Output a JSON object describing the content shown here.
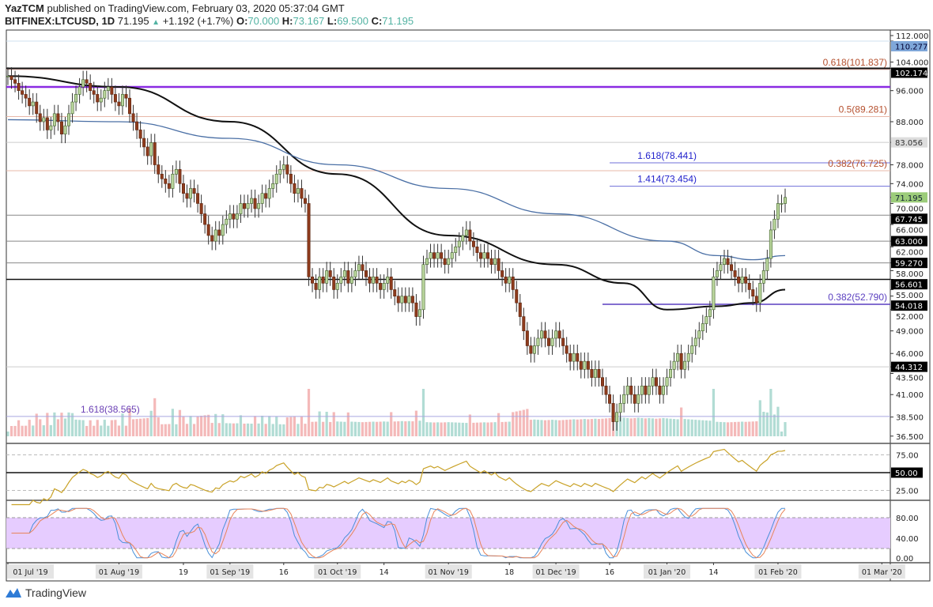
{
  "header": {
    "author": "YazTCM",
    "published": "published on TradingView.com, February 03, 2020 05:37:04 GMT",
    "symbol": "BITFINEX:LTCUSD, 1D",
    "last": "71.195",
    "change": "+1.192 (+1.7%)",
    "o_label": "O:",
    "o": "70.000",
    "h_label": "H:",
    "h": "73.167",
    "l_label": "L:",
    "l": "69.500",
    "c_label": "C:",
    "c": "71.195"
  },
  "footer": {
    "brand": "TradingView"
  },
  "colors": {
    "up_fill": "#b9d59c",
    "up_line": "#3f5f2a",
    "down_fill": "#8e3b1c",
    "down_line": "#5a2410",
    "ma_fast": "#111111",
    "ma_slow": "#4a6fa5",
    "rsi": "#c9a227",
    "stoch_k": "#4a90d9",
    "stoch_d": "#e8845a",
    "stoch_band": "#e6ccff"
  },
  "chart_data": {
    "type": "candlestick",
    "start_date": "2019-07-01",
    "interval": "1D",
    "price_scale": "log",
    "ylim": [
      36.5,
      112
    ],
    "closes": [
      100,
      99,
      98,
      96,
      95,
      94,
      92,
      93,
      90,
      88,
      89,
      86,
      87,
      90,
      88,
      85,
      87,
      90,
      93,
      95,
      97,
      99,
      98,
      96,
      95,
      93,
      94,
      96,
      97,
      95,
      93,
      92,
      95,
      94,
      90,
      88,
      86,
      84,
      82,
      80,
      83,
      78,
      76,
      75,
      74,
      73,
      76,
      77,
      74,
      72,
      71,
      73,
      72,
      70,
      68,
      66,
      64,
      63,
      65,
      64,
      66,
      67,
      68,
      67,
      68,
      70,
      69,
      70,
      71,
      69,
      70,
      72,
      71,
      73,
      74,
      76,
      77,
      78,
      76,
      74,
      72,
      73,
      71,
      70,
      57,
      56,
      55,
      57,
      56,
      58,
      57,
      55,
      56,
      57,
      58,
      56,
      57,
      58,
      59,
      58,
      57,
      56,
      57,
      56,
      55,
      56,
      57,
      55,
      54,
      53,
      54,
      53,
      54,
      53,
      51,
      52,
      59,
      60,
      61,
      60,
      61,
      60,
      59,
      60,
      61,
      62,
      63,
      64,
      65,
      63,
      62,
      61,
      60,
      61,
      60,
      59,
      60,
      58,
      57,
      56,
      57,
      55,
      53,
      51,
      49,
      47,
      46,
      47,
      48,
      49,
      48,
      47,
      48,
      49,
      48,
      47,
      46,
      45,
      46,
      45,
      44,
      45,
      44,
      43,
      44,
      43,
      42,
      41,
      40,
      38,
      39,
      40,
      41,
      42,
      41,
      40,
      41,
      42,
      41,
      42,
      43,
      42,
      41,
      42,
      43,
      44,
      45,
      46,
      44,
      45,
      46,
      47,
      48,
      49,
      50,
      51,
      52,
      57,
      58,
      59,
      60,
      59,
      58,
      57,
      56,
      57,
      56,
      55,
      54,
      53,
      56,
      58,
      60,
      65,
      67,
      70,
      70,
      71.195
    ],
    "moving_averages": [
      {
        "color_key": "ma_fast",
        "points": [
          [
            "2019-07-01",
            100
          ],
          [
            "2019-08-01",
            97
          ],
          [
            "2019-09-01",
            88
          ],
          [
            "2019-10-01",
            76
          ],
          [
            "2019-11-01",
            64
          ],
          [
            "2019-12-01",
            59
          ],
          [
            "2019-12-20",
            56
          ],
          [
            "2020-01-01",
            52
          ],
          [
            "2020-01-15",
            52.5
          ],
          [
            "2020-01-25",
            53
          ],
          [
            "2020-02-03",
            55
          ]
        ]
      },
      {
        "color_key": "ma_slow",
        "points": [
          [
            "2019-07-01",
            88.5
          ],
          [
            "2019-08-01",
            88
          ],
          [
            "2019-09-01",
            84
          ],
          [
            "2019-10-01",
            78
          ],
          [
            "2019-11-01",
            73
          ],
          [
            "2019-12-01",
            68
          ],
          [
            "2020-01-01",
            63
          ],
          [
            "2020-01-15",
            60.5
          ],
          [
            "2020-01-25",
            59.8
          ],
          [
            "2020-02-03",
            60.5
          ]
        ]
      }
    ],
    "levels": [
      {
        "price": 110.277,
        "color": "#cfe0ef",
        "axis_label": "110.277",
        "axis_bg": "#7fa7d9",
        "axis_fg": "#003"
      },
      {
        "price": 102.174,
        "color": "#111",
        "width": 2,
        "axis_label": "102.174",
        "axis_bg": "#000",
        "axis_fg": "#fff"
      },
      {
        "price": 101.837,
        "color": "#f2c6bd",
        "text": "0.618(101.837)",
        "text_color": "#b5502e"
      },
      {
        "price": 97,
        "color": "#8a2be2",
        "width": 2.5
      },
      {
        "price": 89.281,
        "color": "#e8b8a8",
        "text": "0.5(89.281)",
        "text_color": "#b5502e"
      },
      {
        "price": 83.056,
        "color": "#ccc",
        "axis_label": "83.056",
        "axis_bg": "#ddd",
        "axis_fg": "#333"
      },
      {
        "price": 78.441,
        "color": "#6f6fd8",
        "from": "2019-12-16",
        "text": "1.618(78.441)",
        "text_color": "#2222cc",
        "text_at": "left"
      },
      {
        "price": 76.725,
        "color": "#e8b8a8",
        "text": "0.382(76.725)",
        "text_color": "#b5502e"
      },
      {
        "price": 73.454,
        "color": "#6f6fd8",
        "from": "2019-12-16",
        "text": "1.414(73.454)",
        "text_color": "#2222cc",
        "text_at": "left"
      },
      {
        "price": 71.195,
        "color": "none",
        "axis_label": "71.195",
        "axis_bg": "#9ccc7a",
        "axis_fg": "#123"
      },
      {
        "price": 67.745,
        "color": "#888",
        "axis_label": "67.745",
        "axis_bg": "#000",
        "axis_fg": "#fff"
      },
      {
        "price": 63.0,
        "color": "#888",
        "axis_label": "63.000",
        "axis_bg": "#000",
        "axis_fg": "#fff"
      },
      {
        "price": 59.27,
        "color": "#888",
        "axis_label": "59.270",
        "axis_bg": "#000",
        "axis_fg": "#fff"
      },
      {
        "price": 56.601,
        "color": "#111",
        "width": 1.5,
        "axis_label": "56.601",
        "axis_bg": "#000",
        "axis_fg": "#fff"
      },
      {
        "price": 54.018,
        "color": "none",
        "axis_label": "54.018",
        "axis_bg": "#000",
        "axis_fg": "#fff"
      },
      {
        "price": 52.79,
        "color": "#5a3fc0",
        "width": 1.5,
        "from": "2019-12-14",
        "text": "0.382(52.790)",
        "text_color": "#5a3fc0"
      },
      {
        "price": 44.312,
        "color": "#ccc",
        "axis_label": "44.312",
        "axis_bg": "#000",
        "axis_fg": "#fff"
      },
      {
        "price": 38.565,
        "color": "#a9a6e0",
        "text": "1.618(38.565)",
        "text_color": "#6a3fb5",
        "text_at": "far-left"
      }
    ],
    "price_ticks": [
      "112.000",
      "104.000",
      "96.000",
      "88.000",
      "78.000",
      "74.000",
      "70.000",
      "66.000",
      "62.000",
      "58.000",
      "55.000",
      "52.000",
      "49.000",
      "46.000",
      "43.500",
      "41.000",
      "38.500",
      "36.500"
    ],
    "rsi": {
      "ticks": [
        "75.00",
        "50.00",
        "25.00"
      ],
      "level_label": "50.00",
      "period": 14
    },
    "stoch_rsi": {
      "ticks": [
        "80.00",
        "40.00",
        "0.00"
      ],
      "band": [
        20,
        80
      ]
    },
    "x_ticks": [
      {
        "date": "2019-07-01",
        "label": "01 Jul '19",
        "boxed": true
      },
      {
        "date": "2019-08-01",
        "label": "01 Aug '19",
        "boxed": true
      },
      {
        "date": "2019-08-19",
        "label": "19"
      },
      {
        "date": "2019-09-01",
        "label": "01 Sep '19",
        "boxed": true
      },
      {
        "date": "2019-09-16",
        "label": "16"
      },
      {
        "date": "2019-10-01",
        "label": "01 Oct '19",
        "boxed": true
      },
      {
        "date": "2019-10-14",
        "label": "14"
      },
      {
        "date": "2019-11-01",
        "label": "01 Nov '19",
        "boxed": true
      },
      {
        "date": "2019-11-18",
        "label": "18"
      },
      {
        "date": "2019-12-01",
        "label": "01 Dec '19",
        "boxed": true
      },
      {
        "date": "2019-12-16",
        "label": "16"
      },
      {
        "date": "2020-01-01",
        "label": "01 Jan '20",
        "boxed": true
      },
      {
        "date": "2020-01-14",
        "label": "14"
      },
      {
        "date": "2020-02-01",
        "label": "01 Feb '20",
        "boxed": true
      },
      {
        "date": "2020-03-01",
        "label": "01 Mar '20",
        "boxed": true
      }
    ]
  }
}
